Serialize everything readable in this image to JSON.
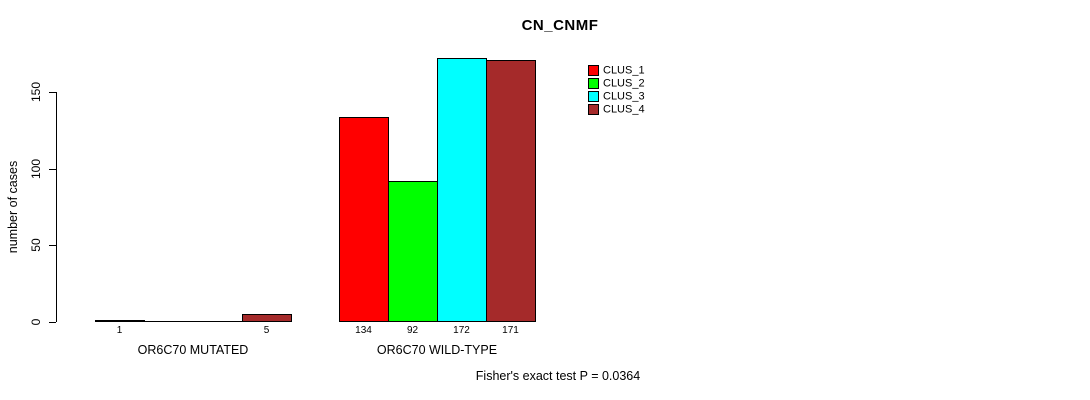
{
  "title": "CN_CNMF",
  "footnote": "Fisher's exact test P = 0.0364",
  "chart_data": {
    "type": "bar",
    "title": "CN_CNMF",
    "xlabel": "",
    "ylabel": "number of cases",
    "yticks": [
      0,
      50,
      100,
      150
    ],
    "ylim": [
      0,
      175
    ],
    "grid": false,
    "legend_position": "top-right",
    "categories": [
      "OR6C70 MUTATED",
      "OR6C70 WILD-TYPE"
    ],
    "series": [
      {
        "name": "CLUS_1",
        "color": "#FF0000",
        "values": [
          1,
          134
        ]
      },
      {
        "name": "CLUS_2",
        "color": "#00FF00",
        "values": [
          0,
          92
        ]
      },
      {
        "name": "CLUS_3",
        "color": "#00FFFF",
        "values": [
          0,
          172
        ]
      },
      {
        "name": "CLUS_4",
        "color": "#A52A2A",
        "values": [
          5,
          171
        ]
      }
    ],
    "bar_value_labels": {
      "OR6C70 MUTATED": [
        "1",
        null,
        null,
        "5"
      ],
      "OR6C70 WILD-TYPE": [
        "134",
        "92",
        "172",
        "171"
      ]
    },
    "annotations": [
      "Fisher's exact test P = 0.0364"
    ],
    "colors": {
      "bar_border": "#000000",
      "axis": "#000000",
      "text": "#000000",
      "background": "#FFFFFF"
    }
  }
}
